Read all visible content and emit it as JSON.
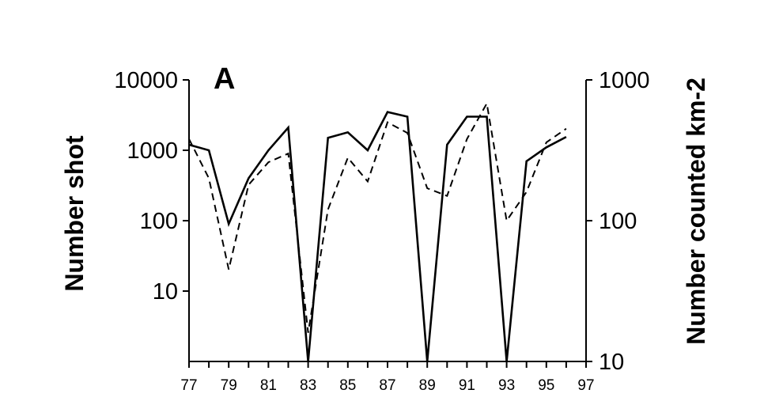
{
  "chart_data": {
    "type": "line",
    "panel_label": "A",
    "x_ticks": [
      "77",
      "79",
      "81",
      "83",
      "85",
      "87",
      "89",
      "91",
      "93",
      "95",
      "97"
    ],
    "xlim": [
      77,
      97
    ],
    "y_left": {
      "label": "Number shot",
      "scale": "log",
      "lim": [
        1,
        10000
      ],
      "ticks": [
        {
          "value": 10000,
          "label": "10000"
        },
        {
          "value": 1000,
          "label": "1000"
        },
        {
          "value": 100,
          "label": "100"
        },
        {
          "value": 10,
          "label": "10"
        }
      ]
    },
    "y_right": {
      "label": "Number counted km-2",
      "scale": "log",
      "lim": [
        10,
        1000
      ],
      "ticks": [
        {
          "value": 1000,
          "label": "1000"
        },
        {
          "value": 100,
          "label": "100"
        },
        {
          "value": 10,
          "label": "10"
        }
      ]
    },
    "series": [
      {
        "axis": "left",
        "style": "solid",
        "color": "#000000",
        "x": [
          77,
          78,
          79,
          80,
          81,
          82,
          83,
          84,
          85,
          86,
          87,
          88,
          89,
          90,
          91,
          92,
          93,
          94,
          95,
          96
        ],
        "y": [
          1200,
          1000,
          90,
          400,
          1000,
          2100,
          1,
          1500,
          1800,
          1000,
          3500,
          3000,
          1,
          1200,
          3000,
          3000,
          1,
          700,
          1100,
          1550
        ]
      },
      {
        "axis": "right",
        "style": "dashed",
        "color": "#000000",
        "x": [
          77,
          78,
          79,
          80,
          81,
          82,
          83,
          84,
          85,
          86,
          87,
          88,
          89,
          90,
          91,
          92,
          93,
          94,
          95,
          96
        ],
        "y": [
          380,
          200,
          45,
          180,
          260,
          300,
          16,
          120,
          280,
          190,
          500,
          420,
          170,
          150,
          380,
          680,
          100,
          160,
          360,
          450
        ]
      }
    ]
  }
}
